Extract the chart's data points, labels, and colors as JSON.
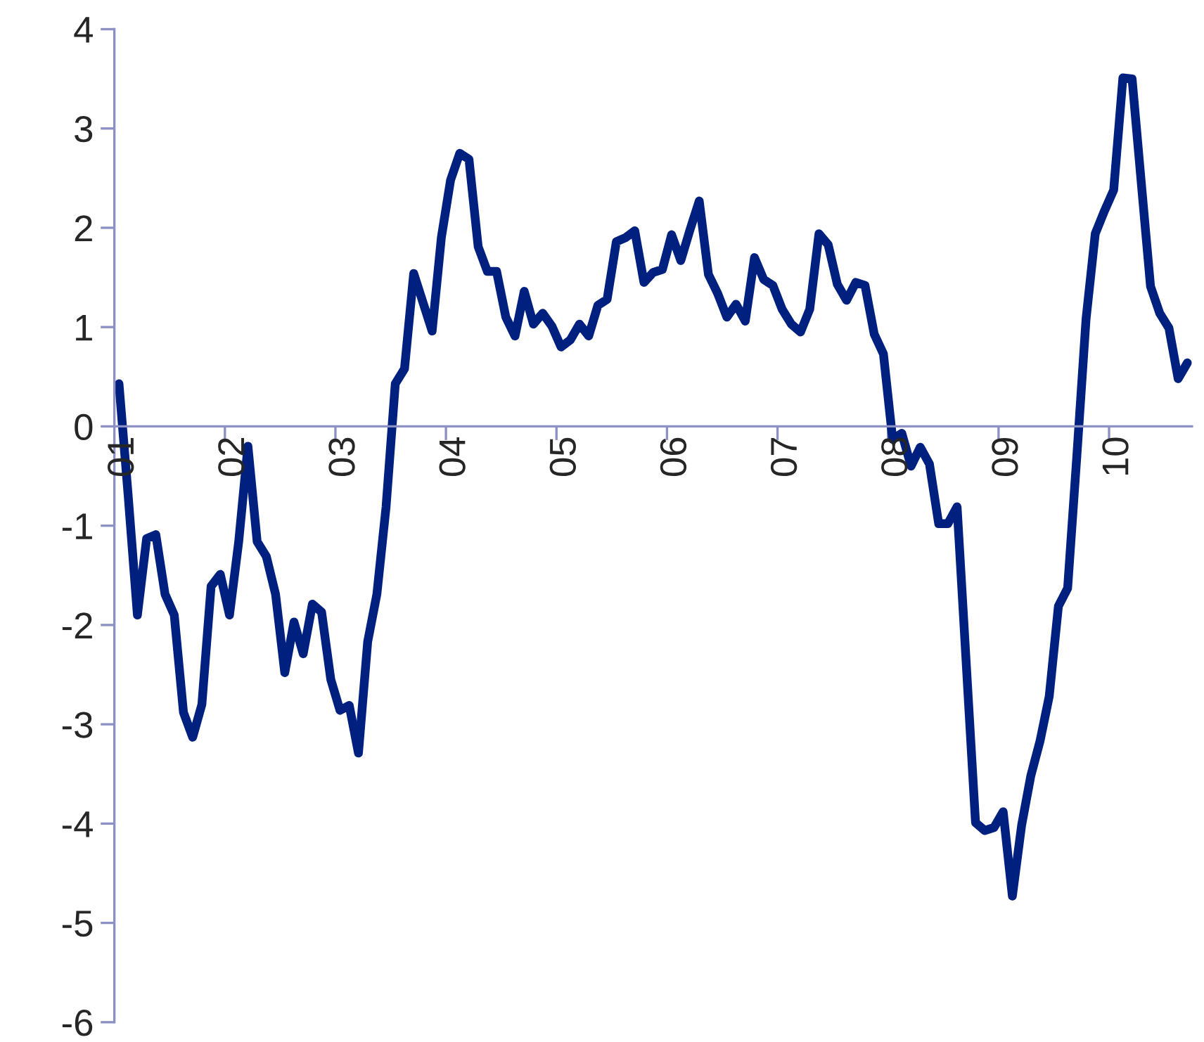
{
  "chart_data": {
    "type": "line",
    "categories": [
      "01",
      null,
      null,
      null,
      null,
      null,
      null,
      null,
      null,
      null,
      null,
      null,
      "02",
      null,
      null,
      null,
      null,
      null,
      null,
      null,
      null,
      null,
      null,
      null,
      "03",
      null,
      null,
      null,
      null,
      null,
      null,
      null,
      null,
      null,
      null,
      null,
      "04",
      null,
      null,
      null,
      null,
      null,
      null,
      null,
      null,
      null,
      null,
      null,
      "05",
      null,
      null,
      null,
      null,
      null,
      null,
      null,
      null,
      null,
      null,
      null,
      "06",
      null,
      null,
      null,
      null,
      null,
      null,
      null,
      null,
      null,
      null,
      null,
      "07",
      null,
      null,
      null,
      null,
      null,
      null,
      null,
      null,
      null,
      null,
      null,
      "08",
      null,
      null,
      null,
      null,
      null,
      null,
      null,
      null,
      null,
      null,
      null,
      "09",
      null,
      null,
      null,
      null,
      null,
      null,
      null,
      null,
      null,
      null,
      null,
      "10",
      null,
      null,
      null,
      null,
      null,
      null,
      null,
      null
    ],
    "series": [
      {
        "color": "#00207f",
        "values": [
          0.43,
          -0.7,
          -1.9,
          -1.13,
          -1.09,
          -1.69,
          -1.9,
          -2.88,
          -3.13,
          -2.8,
          -1.61,
          -1.49,
          -1.9,
          -1.16,
          -0.2,
          -1.16,
          -1.31,
          -1.69,
          -2.48,
          -1.97,
          -2.29,
          -1.79,
          -1.87,
          -2.55,
          -2.86,
          -2.81,
          -3.29,
          -2.17,
          -1.69,
          -0.81,
          0.43,
          0.58,
          1.54,
          1.25,
          0.96,
          1.9,
          2.48,
          2.75,
          2.69,
          1.81,
          1.56,
          1.56,
          1.1,
          0.91,
          1.36,
          1.03,
          1.14,
          1.01,
          0.8,
          0.87,
          1.03,
          0.91,
          1.22,
          1.28,
          1.86,
          1.9,
          1.97,
          1.45,
          1.55,
          1.58,
          1.93,
          1.67,
          1.98,
          2.27,
          1.53,
          1.34,
          1.1,
          1.23,
          1.06,
          1.7,
          1.48,
          1.42,
          1.18,
          1.03,
          0.95,
          1.18,
          1.94,
          1.83,
          1.43,
          1.27,
          1.45,
          1.42,
          0.93,
          0.73,
          -0.13,
          -0.07,
          -0.4,
          -0.21,
          -0.38,
          -0.98,
          -0.98,
          -0.81,
          -2.4,
          -3.99,
          -4.07,
          -4.04,
          -3.88,
          -4.73,
          -4.02,
          -3.52,
          -3.17,
          -2.72,
          -1.81,
          -1.63,
          -0.3,
          1.08,
          1.94,
          2.17,
          2.38,
          3.51,
          3.5,
          2.45,
          1.41,
          1.14,
          0.99,
          0.48,
          0.64
        ]
      }
    ],
    "ylim": [
      -6,
      4
    ],
    "yticks": [
      -6,
      -5,
      -4,
      -3,
      -2,
      -1,
      0,
      1,
      2,
      3,
      4
    ],
    "grid": false
  }
}
